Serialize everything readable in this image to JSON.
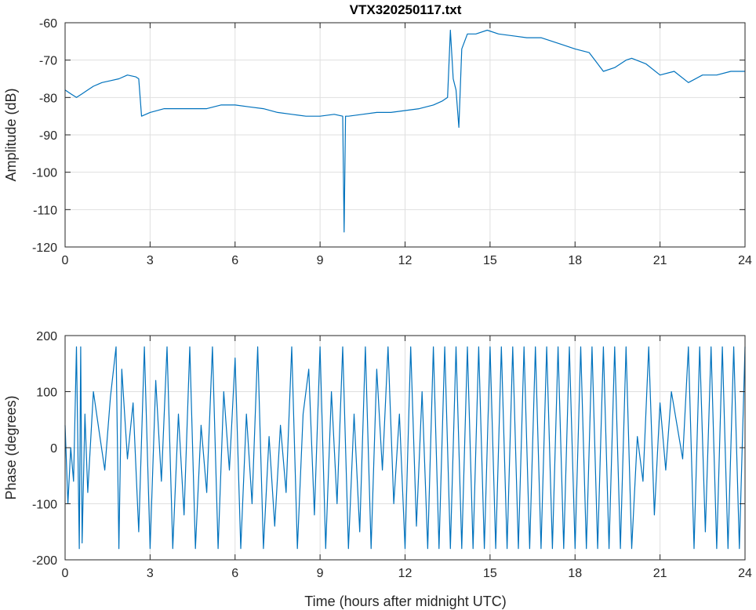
{
  "chart_data": [
    {
      "type": "line",
      "title": "VTX320250117.txt",
      "xlabel": "",
      "ylabel": "Amplitude (dB)",
      "xlim": [
        0,
        24
      ],
      "ylim": [
        -120,
        -60
      ],
      "xticks": [
        0,
        3,
        6,
        9,
        12,
        15,
        18,
        21,
        24
      ],
      "yticks": [
        -120,
        -110,
        -100,
        -90,
        -80,
        -70,
        -60
      ],
      "grid": true,
      "color": "#0072BD",
      "series": [
        {
          "x": [
            0,
            0.2,
            0.4,
            0.6,
            0.8,
            1.0,
            1.3,
            1.6,
            1.9,
            2.2,
            2.5,
            2.6,
            2.7,
            3.0,
            3.5,
            4.0,
            4.5,
            5.0,
            5.5,
            6.0,
            6.5,
            7.0,
            7.5,
            8.0,
            8.5,
            9.0,
            9.5,
            9.8,
            9.85,
            9.9,
            10.0,
            10.5,
            11.0,
            11.5,
            12.0,
            12.5,
            13.0,
            13.3,
            13.5,
            13.6,
            13.7,
            13.8,
            13.9,
            14.0,
            14.2,
            14.5,
            14.9,
            15.3,
            15.8,
            16.3,
            16.8,
            17.2,
            17.6,
            18.0,
            18.5,
            19.0,
            19.4,
            19.8,
            20.0,
            20.5,
            21.0,
            21.5,
            22.0,
            22.5,
            23.0,
            23.5,
            24.0
          ],
          "y": [
            -78,
            -79,
            -80,
            -79,
            -78,
            -77,
            -76,
            -75.5,
            -75,
            -74,
            -74.5,
            -75,
            -85,
            -84,
            -83,
            -83,
            -83,
            -83,
            -82,
            -82,
            -82.5,
            -83,
            -84,
            -84.5,
            -85,
            -85,
            -84.5,
            -85,
            -116,
            -85,
            -85,
            -84.5,
            -84,
            -84,
            -83.5,
            -83,
            -82,
            -81,
            -80,
            -62,
            -75,
            -78,
            -88,
            -67,
            -63,
            -63,
            -62,
            -63,
            -63.5,
            -64,
            -64,
            -65,
            -66,
            -67,
            -68,
            -73,
            -72,
            -70,
            -69.5,
            -71,
            -74,
            -73,
            -76,
            -74,
            -74,
            -73,
            -73
          ]
        }
      ]
    },
    {
      "type": "line",
      "title": "",
      "xlabel": "Time (hours after midnight UTC)",
      "ylabel": "Phase (degrees)",
      "xlim": [
        0,
        24
      ],
      "ylim": [
        -200,
        200
      ],
      "xticks": [
        0,
        3,
        6,
        9,
        12,
        15,
        18,
        21,
        24
      ],
      "yticks": [
        -200,
        -100,
        0,
        100,
        200
      ],
      "grid": true,
      "color": "#0072BD",
      "series": [
        {
          "x": [
            0,
            0.1,
            0.2,
            0.3,
            0.4,
            0.5,
            0.55,
            0.6,
            0.7,
            0.8,
            1.0,
            1.2,
            1.4,
            1.6,
            1.8,
            1.9,
            2.0,
            2.2,
            2.4,
            2.6,
            2.8,
            3.0,
            3.2,
            3.4,
            3.6,
            3.8,
            4.0,
            4.2,
            4.4,
            4.6,
            4.8,
            5.0,
            5.2,
            5.4,
            5.6,
            5.8,
            6.0,
            6.2,
            6.4,
            6.6,
            6.8,
            7.0,
            7.2,
            7.4,
            7.6,
            7.8,
            8.0,
            8.2,
            8.4,
            8.6,
            8.8,
            9.0,
            9.2,
            9.4,
            9.6,
            9.8,
            10.0,
            10.2,
            10.4,
            10.6,
            10.8,
            11.0,
            11.2,
            11.4,
            11.6,
            11.8,
            12.0,
            12.2,
            12.4,
            12.6,
            12.8,
            13.0,
            13.2,
            13.4,
            13.6,
            13.8,
            14.0,
            14.2,
            14.4,
            14.6,
            14.8,
            15.0,
            15.2,
            15.4,
            15.6,
            15.8,
            16.0,
            16.2,
            16.4,
            16.6,
            16.8,
            17.0,
            17.2,
            17.4,
            17.6,
            17.8,
            18.0,
            18.2,
            18.4,
            18.6,
            18.8,
            19.0,
            19.2,
            19.4,
            19.6,
            19.8,
            20.0,
            20.2,
            20.4,
            20.6,
            20.8,
            21.0,
            21.2,
            21.4,
            21.6,
            21.8,
            22.0,
            22.2,
            22.4,
            22.6,
            22.8,
            23.0,
            23.2,
            23.4,
            23.6,
            23.8,
            24.0
          ],
          "y": [
            40,
            -100,
            0,
            -60,
            180,
            -180,
            180,
            -170,
            60,
            -80,
            100,
            30,
            -40,
            90,
            180,
            -180,
            140,
            -20,
            80,
            -150,
            180,
            -180,
            120,
            -60,
            180,
            -180,
            60,
            -120,
            180,
            -180,
            40,
            -80,
            180,
            -180,
            100,
            -40,
            160,
            -180,
            60,
            -100,
            180,
            -180,
            20,
            -140,
            40,
            -80,
            180,
            -180,
            60,
            140,
            -120,
            180,
            -180,
            100,
            -100,
            180,
            -180,
            60,
            -150,
            180,
            -180,
            140,
            -40,
            180,
            -100,
            60,
            -180,
            180,
            -140,
            100,
            -180,
            180,
            -180,
            180,
            -180,
            180,
            -180,
            180,
            -180,
            180,
            -180,
            180,
            -180,
            180,
            -180,
            180,
            -180,
            180,
            -180,
            180,
            -180,
            180,
            -180,
            180,
            -180,
            180,
            -180,
            180,
            -180,
            180,
            -180,
            180,
            -180,
            180,
            -180,
            180,
            -180,
            20,
            -60,
            180,
            -120,
            80,
            -40,
            100,
            40,
            -20,
            180,
            -180,
            180,
            -150,
            180,
            -180,
            180,
            -180,
            180,
            -180,
            180
          ]
        }
      ]
    }
  ]
}
